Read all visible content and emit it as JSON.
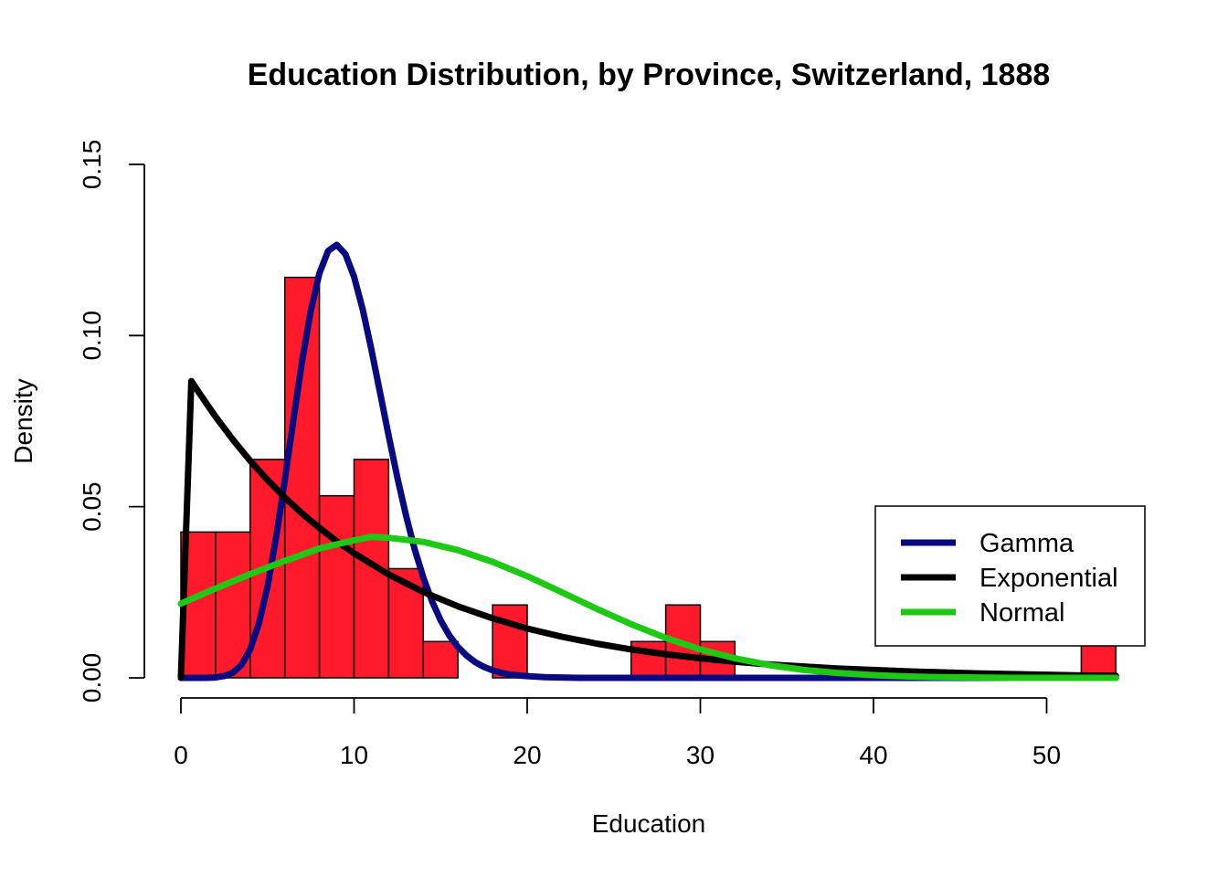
{
  "chart_data": {
    "type": "bar",
    "title": "Education Distribution, by Province, Switzerland, 1888",
    "xlabel": "Education",
    "ylabel": "Density",
    "xlim": [
      0,
      54
    ],
    "ylim": [
      0,
      0.15
    ],
    "x_ticks": [
      0,
      10,
      20,
      30,
      40,
      50
    ],
    "x_tick_labels": [
      "0",
      "10",
      "20",
      "30",
      "40",
      "50"
    ],
    "y_ticks": [
      0,
      0.05,
      0.1,
      0.15
    ],
    "y_tick_labels": [
      "0.00",
      "0.05",
      "0.10",
      "0.15"
    ],
    "histogram": {
      "bin_width": 2,
      "bins": [
        {
          "start": 0,
          "end": 2,
          "density": 0.0426
        },
        {
          "start": 2,
          "end": 4,
          "density": 0.0426
        },
        {
          "start": 4,
          "end": 6,
          "density": 0.0638
        },
        {
          "start": 6,
          "end": 8,
          "density": 0.117
        },
        {
          "start": 8,
          "end": 10,
          "density": 0.0532
        },
        {
          "start": 10,
          "end": 12,
          "density": 0.0638
        },
        {
          "start": 12,
          "end": 14,
          "density": 0.0319
        },
        {
          "start": 14,
          "end": 16,
          "density": 0.0106
        },
        {
          "start": 16,
          "end": 18,
          "density": 0
        },
        {
          "start": 18,
          "end": 20,
          "density": 0.0213
        },
        {
          "start": 20,
          "end": 22,
          "density": 0
        },
        {
          "start": 22,
          "end": 24,
          "density": 0
        },
        {
          "start": 24,
          "end": 26,
          "density": 0
        },
        {
          "start": 26,
          "end": 28,
          "density": 0.0106
        },
        {
          "start": 28,
          "end": 30,
          "density": 0.0213
        },
        {
          "start": 30,
          "end": 32,
          "density": 0.0106
        },
        {
          "start": 52,
          "end": 54,
          "density": 0.0106
        }
      ],
      "color": "#ff1a2b"
    },
    "series": [
      {
        "name": "Gamma",
        "color": "#0a0a80",
        "x": [
          0,
          0.5,
          1,
          1.5,
          2,
          2.5,
          3,
          3.5,
          4,
          4.5,
          5,
          5.5,
          6,
          6.5,
          7,
          7.5,
          8,
          8.5,
          9,
          9.5,
          10,
          10.5,
          11,
          11.5,
          12,
          12.5,
          13,
          13.5,
          14,
          14.5,
          15,
          15.5,
          16,
          16.5,
          17,
          17.5,
          18,
          18.5,
          19,
          19.5,
          20,
          21,
          22,
          23,
          24,
          25,
          26,
          27,
          28,
          30,
          35,
          40,
          45,
          50,
          54
        ],
        "y": [
          0,
          0,
          0,
          0,
          0.0001,
          0.0005,
          0.0015,
          0.0038,
          0.0083,
          0.0158,
          0.0267,
          0.041,
          0.0578,
          0.0755,
          0.0925,
          0.1072,
          0.1182,
          0.1247,
          0.1265,
          0.1238,
          0.1172,
          0.1076,
          0.096,
          0.0834,
          0.0707,
          0.0585,
          0.0474,
          0.0376,
          0.0293,
          0.0224,
          0.0168,
          0.0124,
          0.009,
          0.0065,
          0.0046,
          0.0032,
          0.0022,
          0.0015,
          0.001,
          0.0007,
          0.0005,
          0.0002,
          0.0001,
          0,
          0,
          0,
          0,
          0,
          0,
          0,
          0,
          0,
          0,
          0,
          0
        ]
      },
      {
        "name": "Exponential",
        "color": "#000000",
        "x": [
          0,
          0.6,
          1,
          2,
          3,
          4,
          5,
          6,
          7,
          8,
          9,
          10,
          12,
          14,
          16,
          18,
          20,
          22,
          24,
          26,
          28,
          30,
          32,
          34,
          36,
          38,
          40,
          42,
          44,
          46,
          48,
          50,
          52,
          54
        ],
        "y": [
          0,
          0.0867,
          0.0837,
          0.0763,
          0.0696,
          0.0634,
          0.0578,
          0.0527,
          0.048,
          0.0438,
          0.0399,
          0.0364,
          0.0302,
          0.0251,
          0.0209,
          0.0174,
          0.0144,
          0.012,
          0.01,
          0.0083,
          0.0069,
          0.0057,
          0.0047,
          0.0039,
          0.0033,
          0.0027,
          0.0023,
          0.0019,
          0.0016,
          0.0013,
          0.0011,
          0.0009,
          0.0007,
          0.0006
        ]
      },
      {
        "name": "Normal",
        "color": "#1ec814",
        "x": [
          0,
          2,
          4,
          6,
          8,
          10,
          11,
          12,
          14,
          16,
          18,
          20,
          22,
          24,
          26,
          28,
          30,
          32,
          34,
          36,
          38,
          40,
          42,
          44,
          46,
          48,
          50,
          52,
          54
        ],
        "y": [
          0.0217,
          0.0261,
          0.0303,
          0.0342,
          0.0378,
          0.0402,
          0.0412,
          0.0409,
          0.0397,
          0.0373,
          0.0339,
          0.0297,
          0.025,
          0.0202,
          0.0157,
          0.0117,
          0.0083,
          0.0057,
          0.0037,
          0.0023,
          0.0014,
          0.0008,
          0.0004,
          0.0002,
          0.0001,
          0,
          0,
          0,
          0
        ]
      }
    ],
    "legend": {
      "placement": "right",
      "entries": [
        {
          "label": "Gamma",
          "color": "#0a0a80"
        },
        {
          "label": "Exponential",
          "color": "#000000"
        },
        {
          "label": "Normal",
          "color": "#1ec814"
        }
      ]
    },
    "grid": false
  }
}
